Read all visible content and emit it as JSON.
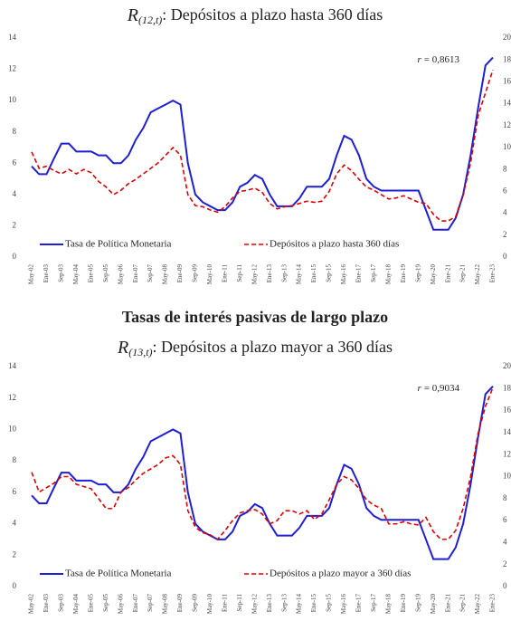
{
  "chart_data": [
    {
      "type": "line",
      "title_symbol": "R",
      "title_subscript": "(12,t)",
      "title": ": Depósitos a plazo hasta 360 días",
      "annotation": {
        "symbol": "r",
        "text": "= 0,8613"
      },
      "categories": [
        "May-02",
        null,
        "Ene-03",
        null,
        "Sep-03",
        null,
        "May-04",
        null,
        "Ene-05",
        null,
        "Sep-05",
        null,
        "May-06",
        null,
        "Ene-07",
        null,
        "Sep-07",
        null,
        "May-08",
        null,
        "Ene-09",
        null,
        "Sep-09",
        null,
        "May-10",
        null,
        "Ene-11",
        null,
        "Sep-11",
        null,
        "May-12",
        null,
        "Ene-13",
        null,
        "Sep-13",
        null,
        "May-14",
        null,
        "Ene-15",
        null,
        "Sep-15",
        null,
        "May-16",
        null,
        "Ene-17",
        null,
        "Sep-17",
        null,
        "May-18",
        null,
        "Ene-19",
        null,
        "Sep-19",
        null,
        "May-20",
        null,
        "Ene-21",
        null,
        "Sep-21",
        null,
        "May-22",
        null,
        "Ene-23"
      ],
      "series": [
        {
          "name": "Tasa de Política Monetaria",
          "color": "#1f1fd6",
          "dash": false,
          "values": [
            5.8,
            5.3,
            5.3,
            6.3,
            7.25,
            7.25,
            6.75,
            6.75,
            6.75,
            6.5,
            6.5,
            6.0,
            6.0,
            6.5,
            7.5,
            8.25,
            9.25,
            9.5,
            9.75,
            10.0,
            9.75,
            6.0,
            4.0,
            3.5,
            3.25,
            3.0,
            3.0,
            3.5,
            4.5,
            4.75,
            5.25,
            5.0,
            4.0,
            3.25,
            3.25,
            3.25,
            3.75,
            4.5,
            4.5,
            4.5,
            5.0,
            6.5,
            7.75,
            7.5,
            6.5,
            5.0,
            4.5,
            4.25,
            4.25,
            4.25,
            4.25,
            4.25,
            4.25,
            3.0,
            1.75,
            1.75,
            1.75,
            2.5,
            4.0,
            6.5,
            9.5,
            12.25,
            12.75
          ]
        },
        {
          "name": "Depósitos a plazo hasta 360 días",
          "color": "#e00000",
          "dash": true,
          "axis": "y2",
          "values": [
            9.6,
            8.1,
            8.3,
            7.9,
            7.6,
            8.0,
            7.6,
            8.0,
            7.7,
            6.9,
            6.4,
            5.7,
            6.1,
            6.7,
            7.1,
            7.6,
            8.1,
            8.6,
            9.3,
            10.0,
            9.3,
            5.7,
            4.7,
            4.6,
            4.3,
            4.1,
            4.6,
            5.4,
            6.0,
            6.1,
            6.3,
            5.9,
            4.9,
            4.4,
            4.6,
            4.7,
            4.9,
            5.1,
            5.0,
            5.1,
            6.0,
            7.6,
            8.4,
            7.9,
            7.1,
            6.4,
            6.1,
            5.7,
            5.3,
            5.4,
            5.6,
            5.3,
            5.0,
            4.9,
            3.9,
            3.3,
            3.3,
            3.7,
            5.7,
            8.6,
            12.9,
            15.0,
            17.1
          ]
        }
      ],
      "ylim": [
        0,
        14
      ],
      "yticks": [
        0,
        2,
        4,
        6,
        8,
        10,
        12,
        14
      ],
      "y2lim": [
        0,
        20
      ],
      "y2ticks": [
        0,
        2,
        4,
        6,
        8,
        10,
        12,
        14,
        16,
        18,
        20
      ],
      "grid": false,
      "legend": "lower center"
    },
    {
      "type": "line",
      "heading": "Tasas de interés pasivas de largo plazo",
      "title_symbol": "R",
      "title_subscript": "(13,t)",
      "title": ": Depósitos a plazo mayor a 360 días",
      "annotation": {
        "symbol": "r",
        "text": "= 0,9034"
      },
      "categories": [
        "May-02",
        null,
        "Ene-03",
        null,
        "Sep-03",
        null,
        "May-04",
        null,
        "Ene-05",
        null,
        "Sep-05",
        null,
        "May-06",
        null,
        "Ene-07",
        null,
        "Sep-07",
        null,
        "May-08",
        null,
        "Ene-09",
        null,
        "Sep-09",
        null,
        "May-10",
        null,
        "Ene-11",
        null,
        "Sep-11",
        null,
        "May-12",
        null,
        "Ene-13",
        null,
        "Sep-13",
        null,
        "May-14",
        null,
        "Ene-15",
        null,
        "Sep-15",
        null,
        "May-16",
        null,
        "Ene-17",
        null,
        "Sep-17",
        null,
        "May-18",
        null,
        "Ene-19",
        null,
        "Sep-19",
        null,
        "May-20",
        null,
        "Ene-21",
        null,
        "Sep-21",
        null,
        "May-22",
        null,
        "Ene-23"
      ],
      "series": [
        {
          "name": "Tasa de Política Monetaria",
          "color": "#1f1fd6",
          "dash": false,
          "values": [
            5.8,
            5.3,
            5.3,
            6.3,
            7.25,
            7.25,
            6.75,
            6.75,
            6.75,
            6.5,
            6.5,
            6.0,
            6.0,
            6.5,
            7.5,
            8.25,
            9.25,
            9.5,
            9.75,
            10.0,
            9.75,
            6.0,
            4.0,
            3.5,
            3.25,
            3.0,
            3.0,
            3.5,
            4.5,
            4.75,
            5.25,
            5.0,
            4.0,
            3.25,
            3.25,
            3.25,
            3.75,
            4.5,
            4.5,
            4.5,
            5.0,
            6.5,
            7.75,
            7.5,
            6.5,
            5.0,
            4.5,
            4.25,
            4.25,
            4.25,
            4.25,
            4.25,
            4.25,
            3.0,
            1.75,
            1.75,
            1.75,
            2.5,
            4.0,
            6.5,
            9.5,
            12.25,
            12.75
          ]
        },
        {
          "name": "Depósitos a plazo mayor a 360 días",
          "color": "#e00000",
          "dash": true,
          "axis": "y2",
          "values": [
            10.4,
            8.6,
            9.0,
            9.4,
            10.0,
            10.0,
            9.3,
            9.1,
            8.9,
            8.0,
            7.1,
            7.1,
            8.6,
            9.0,
            9.7,
            10.3,
            10.7,
            11.1,
            11.7,
            11.9,
            11.1,
            6.9,
            5.4,
            4.9,
            4.7,
            4.3,
            5.1,
            6.0,
            6.7,
            6.9,
            7.0,
            6.6,
            5.7,
            6.0,
            6.9,
            6.9,
            6.6,
            6.9,
            6.1,
            6.6,
            7.9,
            9.3,
            10.0,
            9.7,
            8.9,
            7.9,
            7.4,
            7.1,
            5.7,
            5.7,
            5.9,
            5.7,
            5.6,
            6.3,
            5.0,
            4.3,
            4.3,
            5.1,
            7.1,
            10.0,
            13.9,
            16.4,
            18.1
          ]
        }
      ],
      "ylim": [
        0,
        14
      ],
      "yticks": [
        0,
        2,
        4,
        6,
        8,
        10,
        12,
        14
      ],
      "y2lim": [
        0,
        20
      ],
      "y2ticks": [
        0,
        2,
        4,
        6,
        8,
        10,
        12,
        14,
        16,
        18,
        20
      ],
      "grid": false,
      "legend": "lower center"
    }
  ]
}
